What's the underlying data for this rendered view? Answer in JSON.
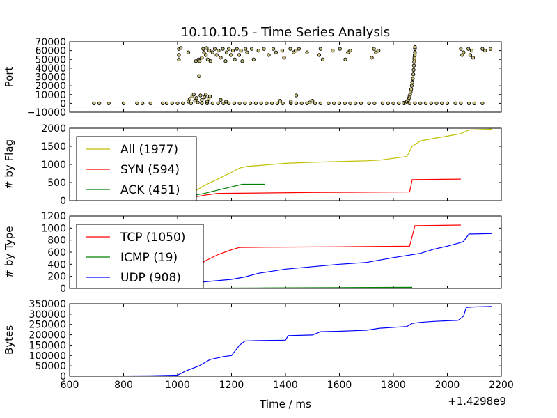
{
  "figure": {
    "title": "10.10.10.5 - Time Series Analysis",
    "xlabel": "Time / ms",
    "offset_label": "+1.4298e9",
    "x_ticks": [
      "600",
      "800",
      "1000",
      "1200",
      "1400",
      "1600",
      "1800",
      "2000",
      "2200"
    ]
  },
  "chart_data": [
    {
      "type": "scatter",
      "ylabel": "Port",
      "xlim": [
        600,
        2200
      ],
      "ylim": [
        -10000,
        70000
      ],
      "y_ticks": [
        "70000",
        "60000",
        "50000",
        "40000",
        "30000",
        "20000",
        "10000",
        "0",
        "−10000"
      ],
      "marker_color": "#c8c07c",
      "low_ports_x": [
        690,
        710,
        745,
        800,
        850,
        870,
        900,
        945,
        960,
        980,
        1000,
        1020,
        1050,
        1090,
        1110,
        1130,
        1150,
        1170,
        1190,
        1210,
        1230,
        1250,
        1270,
        1290,
        1310,
        1330,
        1350,
        1370,
        1390,
        1420,
        1440,
        1460,
        1480,
        1510,
        1530,
        1560,
        1580,
        1600,
        1620,
        1640,
        1660,
        1680,
        1710,
        1730,
        1760,
        1780,
        1800,
        1820,
        1840,
        1860,
        1880,
        1900,
        1920,
        1940,
        1960,
        1980,
        2000,
        2030,
        2050,
        2080,
        2100,
        2130
      ],
      "high_ports": [
        [
          1005,
          62000
        ],
        [
          1005,
          55000
        ],
        [
          1005,
          50000
        ],
        [
          1012,
          63000
        ],
        [
          1040,
          58000
        ],
        [
          1068,
          48000
        ],
        [
          1078,
          50000
        ],
        [
          1080,
          31000
        ],
        [
          1082,
          48000
        ],
        [
          1090,
          52000
        ],
        [
          1095,
          62000
        ],
        [
          1098,
          58000
        ],
        [
          1105,
          55000
        ],
        [
          1108,
          63000
        ],
        [
          1112,
          50000
        ],
        [
          1118,
          60000
        ],
        [
          1122,
          48000
        ],
        [
          1130,
          58000
        ],
        [
          1138,
          62000
        ],
        [
          1145,
          55000
        ],
        [
          1152,
          60000
        ],
        [
          1160,
          52000
        ],
        [
          1168,
          62000
        ],
        [
          1178,
          48000
        ],
        [
          1182,
          58000
        ],
        [
          1190,
          62000
        ],
        [
          1198,
          55000
        ],
        [
          1205,
          60000
        ],
        [
          1212,
          50000
        ],
        [
          1220,
          62000
        ],
        [
          1228,
          55000
        ],
        [
          1235,
          60000
        ],
        [
          1240,
          48000
        ],
        [
          1252,
          62000
        ],
        [
          1258,
          58000
        ],
        [
          1275,
          62000
        ],
        [
          1282,
          50000
        ],
        [
          1300,
          60000
        ],
        [
          1320,
          62000
        ],
        [
          1338,
          55000
        ],
        [
          1355,
          62000
        ],
        [
          1365,
          58000
        ],
        [
          1388,
          60000
        ],
        [
          1395,
          52000
        ],
        [
          1418,
          62000
        ],
        [
          1430,
          58000
        ],
        [
          1438,
          60000
        ],
        [
          1450,
          62000
        ],
        [
          1480,
          58000
        ],
        [
          1525,
          55000
        ],
        [
          1530,
          62000
        ],
        [
          1538,
          50000
        ],
        [
          1575,
          60000
        ],
        [
          1602,
          62000
        ],
        [
          1622,
          50000
        ],
        [
          1632,
          58000
        ],
        [
          1640,
          60000
        ],
        [
          1720,
          52000
        ],
        [
          1728,
          62000
        ],
        [
          1735,
          58000
        ],
        [
          1745,
          60000
        ],
        [
          2050,
          62000
        ],
        [
          2055,
          55000
        ],
        [
          2060,
          58000
        ],
        [
          2078,
          62000
        ],
        [
          2085,
          55000
        ],
        [
          2090,
          60000
        ],
        [
          2095,
          52000
        ],
        [
          2130,
          62000
        ],
        [
          2140,
          60000
        ],
        [
          2160,
          62000
        ]
      ],
      "cluster_1000_1200": [
        [
          1040,
          2000
        ],
        [
          1045,
          5000
        ],
        [
          1055,
          8000
        ],
        [
          1060,
          10000
        ],
        [
          1065,
          3000
        ],
        [
          1070,
          6000
        ],
        [
          1075,
          1000
        ],
        [
          1085,
          9000
        ],
        [
          1090,
          4000
        ],
        [
          1100,
          7000
        ],
        [
          1105,
          10000
        ],
        [
          1110,
          2000
        ],
        [
          1115,
          5000
        ],
        [
          1120,
          8000
        ],
        [
          1160,
          4000
        ],
        [
          1180,
          2000
        ]
      ],
      "ramp_points": [
        [
          1838,
          500
        ],
        [
          1845,
          1000
        ],
        [
          1850,
          2000
        ],
        [
          1855,
          4000
        ],
        [
          1858,
          6000
        ],
        [
          1860,
          8000
        ],
        [
          1862,
          10000
        ],
        [
          1864,
          13000
        ],
        [
          1866,
          16000
        ],
        [
          1868,
          20000
        ],
        [
          1870,
          24000
        ],
        [
          1872,
          28000
        ],
        [
          1874,
          33000
        ],
        [
          1875,
          38000
        ],
        [
          1876,
          43000
        ],
        [
          1877,
          47000
        ],
        [
          1878,
          50000
        ],
        [
          1878,
          52000
        ],
        [
          1879,
          55000
        ],
        [
          1880,
          58000
        ],
        [
          1880,
          62000
        ],
        [
          1880,
          64000
        ]
      ],
      "extra_points": [
        [
          1380,
          3000
        ],
        [
          1420,
          2000
        ],
        [
          1440,
          9000
        ],
        [
          1490,
          1000
        ],
        [
          1500,
          3000
        ]
      ]
    },
    {
      "type": "line",
      "ylabel": "# by Flag",
      "xlim": [
        600,
        2200
      ],
      "ylim": [
        0,
        2000
      ],
      "y_ticks": [
        "2000",
        "1500",
        "1000",
        "500",
        "0"
      ],
      "series": [
        {
          "name": "All (1977)",
          "color": "#bfbf00",
          "points": [
            [
              690,
              10
            ],
            [
              800,
              15
            ],
            [
              900,
              20
            ],
            [
              1000,
              40
            ],
            [
              1050,
              200
            ],
            [
              1100,
              420
            ],
            [
              1150,
              600
            ],
            [
              1200,
              780
            ],
            [
              1230,
              900
            ],
            [
              1260,
              950
            ],
            [
              1300,
              970
            ],
            [
              1400,
              1030
            ],
            [
              1500,
              1060
            ],
            [
              1600,
              1080
            ],
            [
              1700,
              1100
            ],
            [
              1750,
              1120
            ],
            [
              1850,
              1220
            ],
            [
              1870,
              1500
            ],
            [
              1900,
              1650
            ],
            [
              1950,
              1720
            ],
            [
              2000,
              1780
            ],
            [
              2050,
              1850
            ],
            [
              2080,
              1950
            ],
            [
              2150,
              1970
            ],
            [
              2165,
              1977
            ]
          ]
        },
        {
          "name": "SYN (594)",
          "color": "#ff0000",
          "points": [
            [
              690,
              5
            ],
            [
              900,
              10
            ],
            [
              1000,
              20
            ],
            [
              1050,
              80
            ],
            [
              1100,
              150
            ],
            [
              1150,
              200
            ],
            [
              1300,
              210
            ],
            [
              1500,
              225
            ],
            [
              1700,
              232
            ],
            [
              1860,
              240
            ],
            [
              1870,
              580
            ],
            [
              2050,
              594
            ]
          ]
        },
        {
          "name": "ACK (451)",
          "color": "#008000",
          "points": [
            [
              690,
              5
            ],
            [
              900,
              10
            ],
            [
              1000,
              60
            ],
            [
              1100,
              200
            ],
            [
              1200,
              380
            ],
            [
              1240,
              451
            ],
            [
              1325,
              451
            ]
          ]
        }
      ]
    },
    {
      "type": "line",
      "ylabel": "# by Type",
      "xlim": [
        600,
        2200
      ],
      "ylim": [
        0,
        1200
      ],
      "y_ticks": [
        "1200",
        "1000",
        "800",
        "600",
        "400",
        "200",
        "0"
      ],
      "series": [
        {
          "name": "TCP (1050)",
          "color": "#ff0000",
          "points": [
            [
              690,
              5
            ],
            [
              900,
              10
            ],
            [
              1000,
              80
            ],
            [
              1050,
              250
            ],
            [
              1100,
              450
            ],
            [
              1150,
              560
            ],
            [
              1200,
              640
            ],
            [
              1230,
              680
            ],
            [
              1400,
              685
            ],
            [
              1600,
              690
            ],
            [
              1860,
              700
            ],
            [
              1880,
              1040
            ],
            [
              2050,
              1050
            ]
          ]
        },
        {
          "name": "ICMP (19)",
          "color": "#008000",
          "points": [
            [
              690,
              0
            ],
            [
              1000,
              3
            ],
            [
              1300,
              8
            ],
            [
              1600,
              14
            ],
            [
              1870,
              19
            ]
          ]
        },
        {
          "name": "UDP (908)",
          "color": "#0000ff",
          "points": [
            [
              690,
              0
            ],
            [
              900,
              5
            ],
            [
              1000,
              30
            ],
            [
              1050,
              80
            ],
            [
              1100,
              110
            ],
            [
              1200,
              150
            ],
            [
              1250,
              190
            ],
            [
              1300,
              250
            ],
            [
              1400,
              320
            ],
            [
              1500,
              360
            ],
            [
              1600,
              400
            ],
            [
              1700,
              430
            ],
            [
              1800,
              510
            ],
            [
              1900,
              580
            ],
            [
              1950,
              650
            ],
            [
              2000,
              700
            ],
            [
              2050,
              760
            ],
            [
              2060,
              780
            ],
            [
              2080,
              900
            ],
            [
              2165,
              908
            ]
          ]
        }
      ]
    },
    {
      "type": "line",
      "ylabel": "Bytes",
      "xlim": [
        600,
        2200
      ],
      "ylim": [
        0,
        350000
      ],
      "y_ticks": [
        "350000",
        "300000",
        "250000",
        "200000",
        "150000",
        "100000",
        "50000",
        "0"
      ],
      "series": [
        {
          "name": "",
          "color": "#0000ff",
          "points": [
            [
              690,
              500
            ],
            [
              900,
              2000
            ],
            [
              1000,
              5000
            ],
            [
              1030,
              25000
            ],
            [
              1080,
              50000
            ],
            [
              1120,
              80000
            ],
            [
              1170,
              95000
            ],
            [
              1200,
              100000
            ],
            [
              1215,
              125000
            ],
            [
              1230,
              150000
            ],
            [
              1250,
              170000
            ],
            [
              1300,
              172000
            ],
            [
              1400,
              174000
            ],
            [
              1410,
              196000
            ],
            [
              1500,
              199000
            ],
            [
              1530,
              215000
            ],
            [
              1600,
              217000
            ],
            [
              1700,
              222000
            ],
            [
              1750,
              232000
            ],
            [
              1850,
              240000
            ],
            [
              1870,
              255000
            ],
            [
              1900,
              260000
            ],
            [
              1950,
              265000
            ],
            [
              2000,
              268000
            ],
            [
              2040,
              270000
            ],
            [
              2060,
              290000
            ],
            [
              2070,
              332000
            ],
            [
              2100,
              335000
            ],
            [
              2165,
              337000
            ]
          ]
        }
      ]
    }
  ]
}
